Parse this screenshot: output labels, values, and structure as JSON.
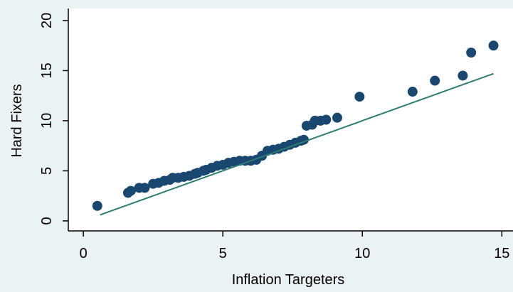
{
  "chart_data": {
    "type": "scatter",
    "x_label": "Inflation Targeters",
    "y_label": "Hard Fixers",
    "xlim": [
      -0.54,
      15.4
    ],
    "ylim": [
      -1.0,
      21.2
    ],
    "xticks": [
      0,
      5,
      10,
      15
    ],
    "yticks": [
      0,
      5,
      10,
      15,
      20
    ],
    "series": [
      {
        "type": "scatter",
        "color": "#1a476f",
        "x": [
          0.5,
          1.6,
          1.7,
          2.0,
          2.2,
          2.5,
          2.7,
          2.9,
          3.1,
          3.2,
          3.4,
          3.6,
          3.8,
          4.0,
          4.1,
          4.3,
          4.4,
          4.6,
          4.8,
          5.0,
          5.2,
          5.4,
          5.6,
          5.8,
          6.0,
          6.2,
          6.4,
          6.6,
          6.8,
          7.0,
          7.2,
          7.4,
          7.6,
          7.8,
          7.9,
          8.0,
          8.2,
          8.3,
          8.5,
          8.7,
          9.1,
          9.9,
          11.8,
          12.6,
          13.6,
          13.9,
          14.7
        ],
        "values": [
          1.5,
          2.8,
          3.0,
          3.3,
          3.3,
          3.7,
          3.8,
          4.0,
          4.1,
          4.3,
          4.3,
          4.4,
          4.5,
          4.7,
          4.8,
          5.0,
          5.1,
          5.3,
          5.5,
          5.6,
          5.8,
          5.9,
          6.0,
          6.0,
          6.0,
          6.1,
          6.5,
          7.0,
          7.1,
          7.2,
          7.4,
          7.6,
          7.8,
          8.0,
          8.1,
          9.5,
          9.6,
          10.0,
          10.0,
          10.1,
          10.3,
          12.4,
          12.9,
          14.0,
          14.5,
          16.8,
          17.5
        ]
      },
      {
        "type": "line",
        "color": "#2e7d6e",
        "x": [
          0.6,
          14.7
        ],
        "values": [
          0.6,
          14.7
        ]
      }
    ]
  }
}
